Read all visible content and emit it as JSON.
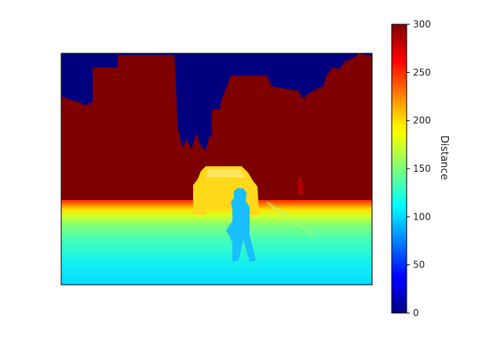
{
  "chart_data": {
    "type": "heatmap",
    "title": "",
    "xlabel": "",
    "ylabel": "",
    "colormap": "jet",
    "colorbar": {
      "label": "Distance",
      "range": [
        0,
        300
      ],
      "ticks": [
        "0",
        "50",
        "100",
        "150",
        "200",
        "250",
        "300"
      ]
    },
    "regions": [
      {
        "name": "sky",
        "value": 0
      },
      {
        "name": "buildings",
        "value": 300
      },
      {
        "name": "car",
        "value": 210
      },
      {
        "name": "pedestrian",
        "value": 115
      },
      {
        "name": "ground-far",
        "value": 240
      },
      {
        "name": "ground-near",
        "value": 110
      }
    ]
  }
}
